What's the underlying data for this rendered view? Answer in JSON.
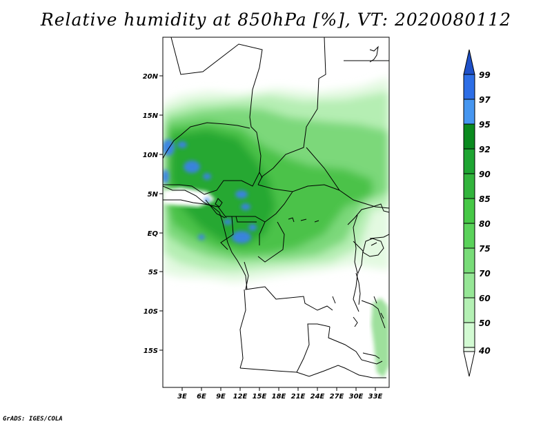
{
  "title": "Relative humidity at 850hPa [%], VT: 2020080112",
  "credit": "GrADS: IGES/COLA",
  "map": {
    "lat_labels": [
      "20N",
      "15N",
      "10N",
      "5N",
      "EQ",
      "5S",
      "10S",
      "15S"
    ],
    "lon_labels": [
      "3E",
      "6E",
      "9E",
      "12E",
      "15E",
      "18E",
      "21E",
      "24E",
      "27E",
      "30E",
      "33E"
    ]
  },
  "colorbar": {
    "labels": [
      "99",
      "97",
      "95",
      "92",
      "90",
      "85",
      "80",
      "75",
      "70",
      "60",
      "50",
      "40"
    ],
    "colors": [
      "#1e50c8",
      "#2d6ee6",
      "#4696f0",
      "#0a8a1e",
      "#1ea532",
      "#32b43c",
      "#46c846",
      "#5ad25a",
      "#78dc78",
      "#96e696",
      "#b4f0b4",
      "#d2fad2",
      "#ebfcea",
      "#ffffff"
    ]
  }
}
